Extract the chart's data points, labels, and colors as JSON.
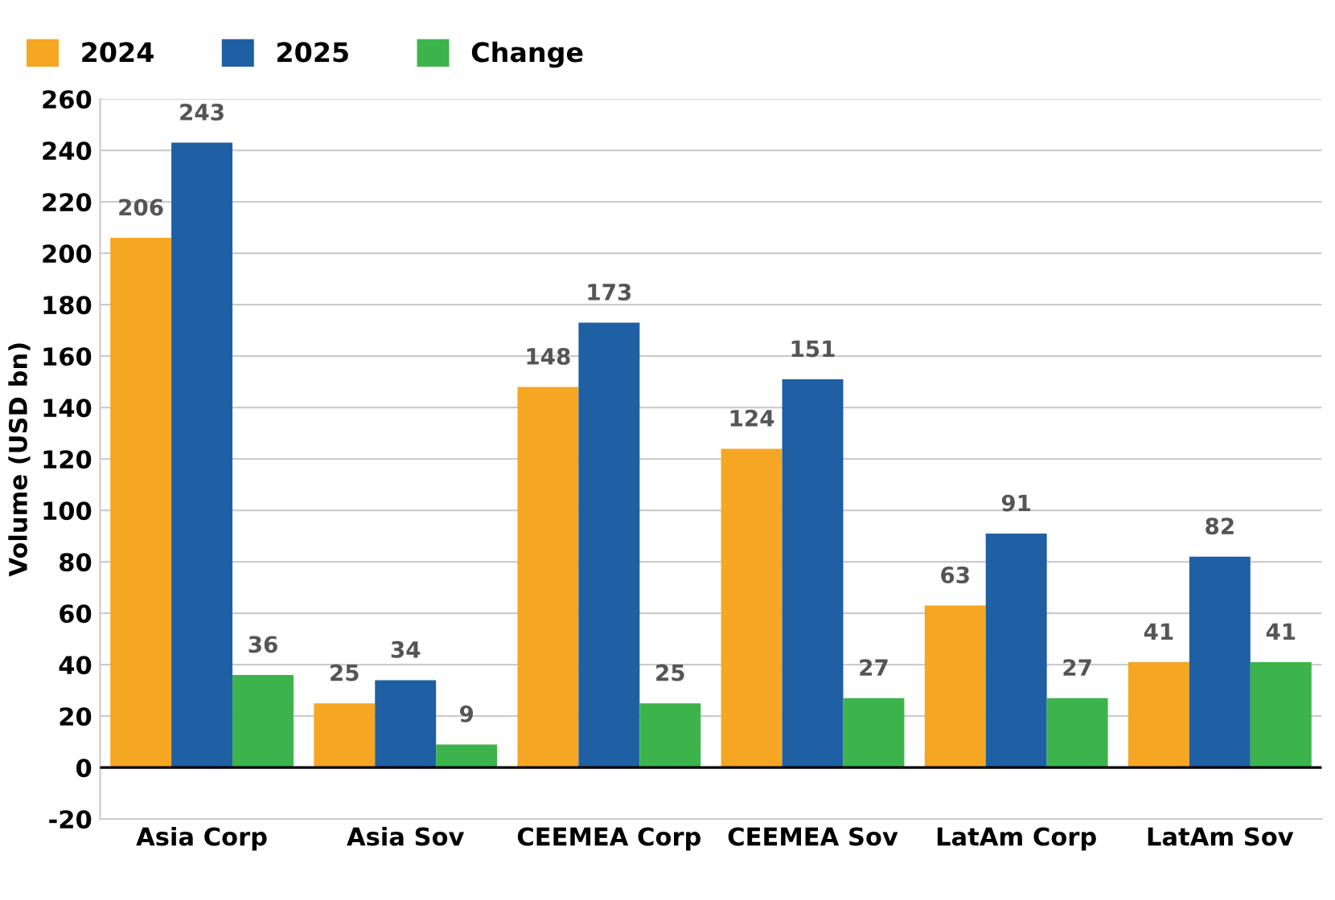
{
  "chart_data": {
    "type": "bar",
    "ylabel": "Volume (USD bn)",
    "categories": [
      "Asia Corp",
      "Asia Sov",
      "CEEMEA Corp",
      "CEEMEA Sov",
      "LatAm Corp",
      "LatAm Sov"
    ],
    "series": [
      {
        "name": "2024",
        "color": "#f5a623",
        "values": [
          206,
          25,
          148,
          124,
          63,
          41
        ]
      },
      {
        "name": "2025",
        "color": "#1f5fa3",
        "values": [
          243,
          34,
          173,
          151,
          91,
          82
        ]
      },
      {
        "name": "Change",
        "color": "#3cb44b",
        "values": [
          36,
          9,
          25,
          27,
          27,
          41
        ]
      }
    ],
    "ylim": [
      -20,
      260
    ],
    "yticks": [
      -20,
      0,
      20,
      40,
      60,
      80,
      100,
      120,
      140,
      160,
      180,
      200,
      220,
      240,
      260
    ],
    "grid": "y",
    "legend": "top left",
    "data_labels": true
  }
}
